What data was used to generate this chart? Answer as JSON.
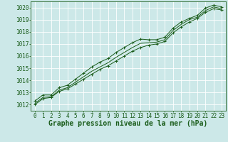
{
  "bg_color": "#cce8e8",
  "grid_color": "#ffffff",
  "line_color": "#1a5c1a",
  "marker_color": "#1a5c1a",
  "xlabel": "Graphe pression niveau de la mer (hPa)",
  "xlabel_fontsize": 7.0,
  "xtick_fontsize": 5.5,
  "ytick_fontsize": 5.5,
  "xlim": [
    -0.5,
    23.5
  ],
  "ylim": [
    1011.5,
    1020.5
  ],
  "yticks": [
    1012,
    1013,
    1014,
    1015,
    1016,
    1017,
    1018,
    1019,
    1020
  ],
  "xticks": [
    0,
    1,
    2,
    3,
    4,
    5,
    6,
    7,
    8,
    9,
    10,
    11,
    12,
    13,
    14,
    15,
    16,
    17,
    18,
    19,
    20,
    21,
    22,
    23
  ],
  "series": [
    [
      1012.0,
      1012.5,
      1012.6,
      1013.1,
      1013.3,
      1013.7,
      1014.1,
      1014.5,
      1014.9,
      1015.2,
      1015.6,
      1016.0,
      1016.4,
      1016.7,
      1016.9,
      1017.0,
      1017.2,
      1017.9,
      1018.4,
      1018.8,
      1019.1,
      1019.6,
      1019.9,
      1019.8
    ],
    [
      1012.1,
      1012.6,
      1012.65,
      1013.2,
      1013.4,
      1013.85,
      1014.3,
      1014.75,
      1015.1,
      1015.45,
      1015.9,
      1016.3,
      1016.7,
      1017.05,
      1017.1,
      1017.15,
      1017.35,
      1018.1,
      1018.6,
      1019.0,
      1019.2,
      1019.75,
      1020.05,
      1019.9
    ],
    [
      1012.3,
      1012.8,
      1012.8,
      1013.4,
      1013.6,
      1014.1,
      1014.6,
      1015.1,
      1015.5,
      1015.8,
      1016.3,
      1016.7,
      1017.1,
      1017.4,
      1017.35,
      1017.35,
      1017.55,
      1018.3,
      1018.8,
      1019.1,
      1019.35,
      1019.95,
      1020.2,
      1020.05
    ]
  ]
}
